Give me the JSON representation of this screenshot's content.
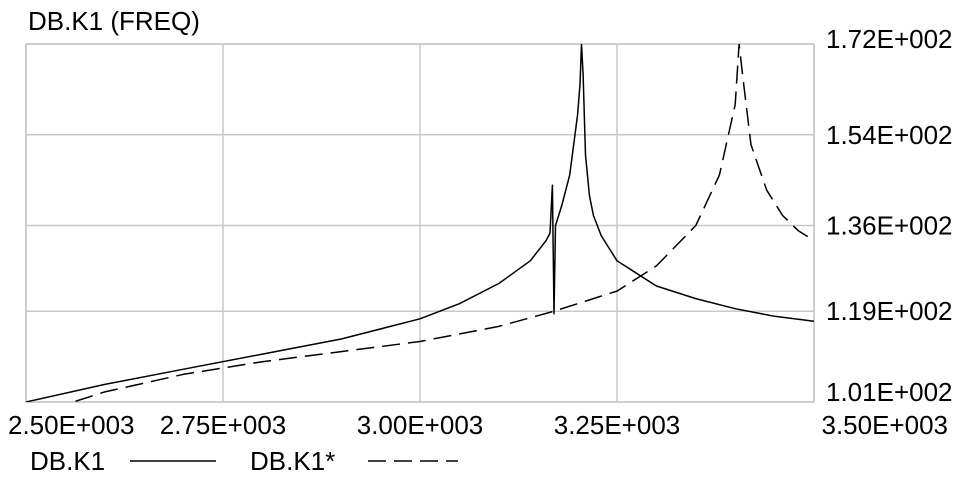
{
  "chart_data": {
    "type": "line",
    "title": "DB.K1 (FREQ)",
    "xlim": [
      2500,
      3500
    ],
    "ylim": [
      101,
      172
    ],
    "x_ticks": [
      {
        "value": 2500,
        "label": "2.50E+003"
      },
      {
        "value": 2750,
        "label": "2.75E+003"
      },
      {
        "value": 3000,
        "label": "3.00E+003"
      },
      {
        "value": 3250,
        "label": "3.25E+003"
      },
      {
        "value": 3500,
        "label": "3.50E+003"
      }
    ],
    "y_ticks": [
      {
        "value": 172,
        "label": "1.72E+002"
      },
      {
        "value": 154,
        "label": "1.54E+002"
      },
      {
        "value": 136,
        "label": "1.36E+002"
      },
      {
        "value": 119,
        "label": "1.19E+002"
      },
      {
        "value": 101,
        "label": "1.01E+002"
      }
    ],
    "y_axis_side": "right",
    "grid": true,
    "legend_position": "bottom-left",
    "series": [
      {
        "name": "DB.K1",
        "style": "solid",
        "color": "#000000",
        "x": [
          2500,
          2600,
          2700,
          2800,
          2900,
          3000,
          3050,
          3100,
          3140,
          3160,
          3165,
          3168,
          3170,
          3172,
          3180,
          3190,
          3200,
          3203,
          3205,
          3207,
          3210,
          3215,
          3220,
          3230,
          3250,
          3300,
          3350,
          3400,
          3450,
          3500
        ],
        "values": [
          101,
          104.5,
          107.5,
          110.5,
          113.5,
          117.5,
          120.5,
          124.5,
          129,
          133,
          134.5,
          144,
          118.5,
          136,
          140,
          146,
          158,
          164,
          172,
          166,
          150,
          142,
          138,
          134,
          129,
          124,
          121.5,
          119.5,
          118,
          117
        ]
      },
      {
        "name": "DB.K1*",
        "style": "dashed",
        "color": "#000000",
        "x": [
          2500,
          2600,
          2700,
          2800,
          2900,
          3000,
          3100,
          3170,
          3250,
          3300,
          3350,
          3380,
          3400,
          3405,
          3410,
          3420,
          3440,
          3460,
          3480,
          3500
        ],
        "values": [
          98,
          103,
          106.5,
          109,
          111,
          113,
          116,
          119,
          123,
          128,
          136,
          146,
          160,
          172,
          165,
          152,
          143,
          138,
          135,
          133
        ]
      }
    ]
  }
}
